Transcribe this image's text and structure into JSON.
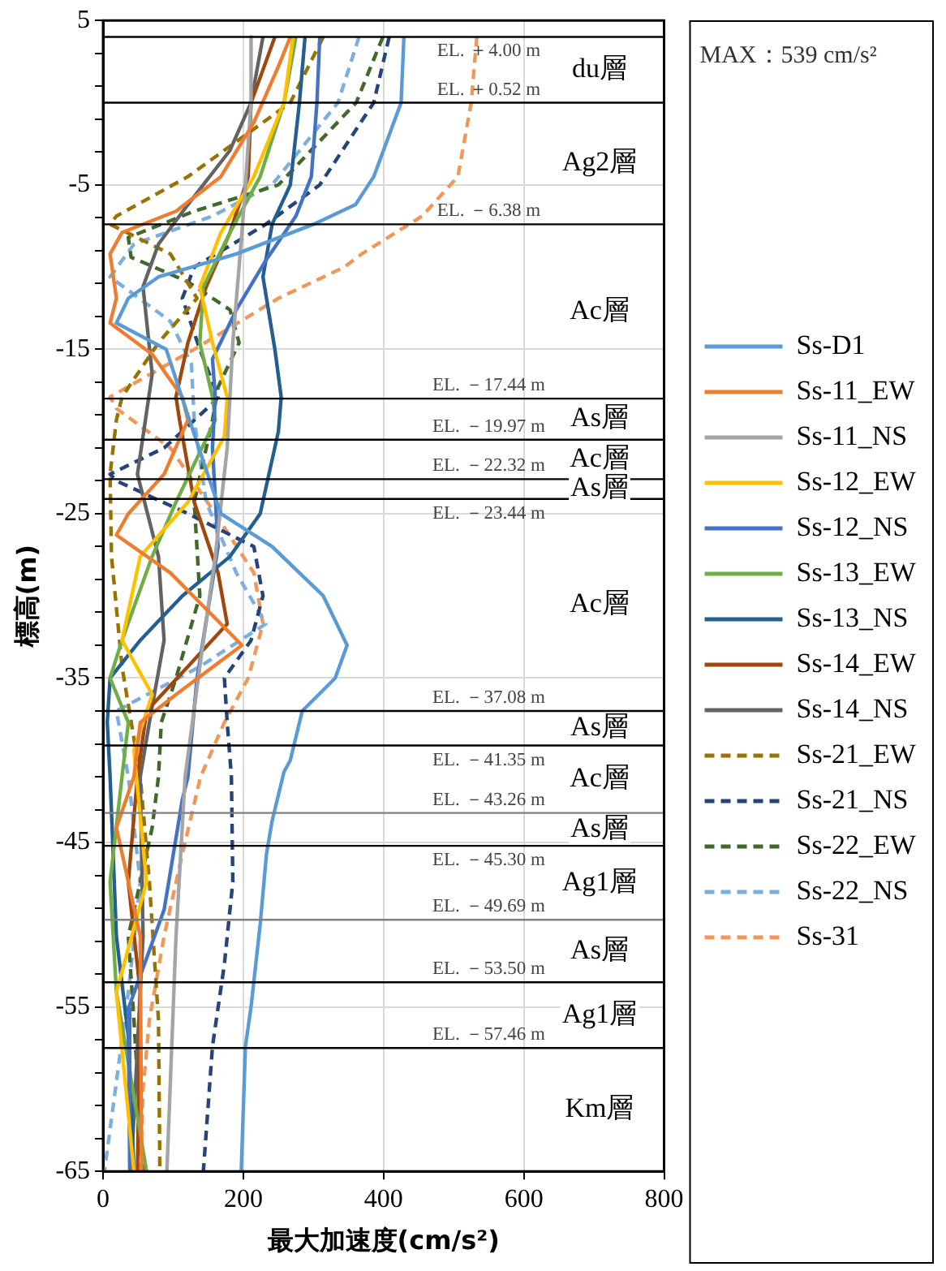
{
  "chart_data": {
    "type": "line",
    "xlabel": "最大加速度(cm/s²)",
    "ylabel": "標高(m)",
    "xlim": [
      0,
      800
    ],
    "xticks": [
      0,
      200,
      400,
      600,
      800
    ],
    "ylim": [
      -65,
      5
    ],
    "yticks": [
      5,
      {
        "value": 3,
        "label": null
      },
      {
        "value": 1,
        "label": null
      },
      {
        "value": -1,
        "label": null
      },
      {
        "value": -3,
        "label": null
      },
      -5,
      {
        "value": -7,
        "label": null
      },
      {
        "value": -9,
        "label": null
      },
      {
        "value": -11,
        "label": null
      },
      {
        "value": -13,
        "label": null
      },
      -15,
      {
        "value": -17,
        "label": null
      },
      {
        "value": -19,
        "label": null
      },
      {
        "value": -21,
        "label": null
      },
      {
        "value": -23,
        "label": null
      },
      -25,
      {
        "value": -27,
        "label": null
      },
      {
        "value": -29,
        "label": null
      },
      {
        "value": -31,
        "label": null
      },
      {
        "value": -33,
        "label": null
      },
      -35,
      {
        "value": -37,
        "label": null
      },
      {
        "value": -39,
        "label": null
      },
      {
        "value": -41,
        "label": null
      },
      {
        "value": -43,
        "label": null
      },
      -45,
      {
        "value": -47,
        "label": null
      },
      {
        "value": -49,
        "label": null
      },
      {
        "value": -51,
        "label": null
      },
      {
        "value": -53,
        "label": null
      },
      -55,
      {
        "value": -57,
        "label": null
      },
      {
        "value": -59,
        "label": null
      },
      {
        "value": -61,
        "label": null
      },
      {
        "value": -63,
        "label": null
      },
      -65
    ],
    "grid": true,
    "legend": "right",
    "marker": "none",
    "series": [
      {
        "name": "Ss-D1",
        "color": "#5b9bd5",
        "line_style": "solid",
        "x": [
          429,
          425,
          386,
          360,
          300,
          190,
          79,
          36,
          19,
          90,
          113,
          168,
          241,
          314,
          348,
          331,
          284,
          267,
          258,
          241,
          233,
          224,
          211,
          203,
          197
        ],
        "values": [
          4.0,
          0.0,
          -4.5,
          -6.2,
          -7.4,
          -9.2,
          -10.6,
          -11.9,
          -13.4,
          -15.0,
          -18.0,
          -25.0,
          -27.0,
          -30.0,
          -33.0,
          -35.0,
          -37.0,
          -40.0,
          -40.7,
          -43.7,
          -45.7,
          -50.0,
          -55.0,
          -57.4,
          -65.0
        ]
      },
      {
        "name": "Ss-11_EW",
        "color": "#ed7d31",
        "line_style": "solid",
        "x": [
          267,
          250,
          215,
          168,
          104,
          27,
          10,
          19,
          10,
          70,
          113,
          121,
          87,
          36,
          19,
          96,
          198,
          104,
          53,
          44,
          19,
          53,
          55
        ],
        "values": [
          4.0,
          2.2,
          -1.2,
          -4.5,
          -6.6,
          -7.9,
          -9.2,
          -11.9,
          -13.4,
          -15.3,
          -17.9,
          -19.3,
          -22.6,
          -25.0,
          -26.3,
          -28.6,
          -33.0,
          -36.0,
          -37.7,
          -41.0,
          -44.1,
          -50.7,
          -65.0
        ]
      },
      {
        "name": "Ss-11_NS",
        "color": "#a5a5a5",
        "line_style": "solid",
        "x": [
          211,
          211,
          203,
          198,
          185,
          177,
          160,
          138,
          117,
          104,
          91
        ],
        "values": [
          4.0,
          0.0,
          -5.0,
          -7.9,
          -14.6,
          -21.0,
          -27.6,
          -34.3,
          -41.0,
          -50.7,
          -65.0
        ]
      },
      {
        "name": "Ss-12_EW",
        "color": "#ffc000",
        "line_style": "solid",
        "x": [
          271,
          258,
          215,
          168,
          138,
          156,
          177,
          173,
          121,
          53,
          27,
          70,
          44,
          62,
          19,
          44
        ],
        "values": [
          4.0,
          0.0,
          -4.5,
          -7.9,
          -11.2,
          -14.6,
          -17.9,
          -20.3,
          -24.3,
          -27.6,
          -32.7,
          -36.0,
          -39.4,
          -47.4,
          -54.1,
          -65.0
        ]
      },
      {
        "name": "Ss-12_NS",
        "color": "#4472c4",
        "line_style": "solid",
        "x": [
          309,
          305,
          297,
          275,
          232,
          190,
          156,
          160,
          156,
          164,
          134,
          121,
          113,
          87,
          36,
          38
        ],
        "values": [
          4.0,
          0.0,
          -4.5,
          -6.9,
          -9.6,
          -12.6,
          -15.6,
          -17.9,
          -21.0,
          -27.0,
          -35.0,
          -41.0,
          -42.4,
          -49.1,
          -55.1,
          -65.0
        ]
      },
      {
        "name": "Ss-13_EW",
        "color": "#70ad47",
        "line_style": "solid",
        "x": [
          275,
          258,
          224,
          181,
          143,
          138,
          156,
          160,
          104,
          70,
          27,
          10,
          36,
          27,
          10,
          19,
          62
        ],
        "values": [
          4.0,
          0.0,
          -4.5,
          -7.9,
          -11.2,
          -14.6,
          -17.9,
          -19.3,
          -24.3,
          -27.6,
          -32.7,
          -35.0,
          -37.7,
          -41.0,
          -47.4,
          -54.1,
          -65.0
        ]
      },
      {
        "name": "Ss-13_NS",
        "color": "#255e91",
        "line_style": "solid",
        "x": [
          288,
          280,
          267,
          241,
          228,
          245,
          254,
          250,
          224,
          181,
          113,
          53,
          10,
          6,
          10,
          19,
          36,
          44
        ],
        "values": [
          4.0,
          0.0,
          -5.0,
          -7.4,
          -10.6,
          -15.0,
          -17.9,
          -20.0,
          -25.0,
          -27.6,
          -30.0,
          -32.7,
          -35.0,
          -37.7,
          -41.0,
          -50.7,
          -56.8,
          -65.0
        ]
      },
      {
        "name": "Ss-14_EW",
        "color": "#9e480e",
        "line_style": "solid",
        "x": [
          245,
          211,
          207,
          181,
          147,
          121,
          104,
          109,
          130,
          164,
          177,
          121,
          62,
          49,
          36,
          53,
          49
        ],
        "values": [
          4.0,
          0.0,
          -4.5,
          -7.9,
          -11.2,
          -14.6,
          -17.9,
          -19.3,
          -24.3,
          -28.6,
          -31.7,
          -34.3,
          -37.0,
          -41.0,
          -47.4,
          -54.1,
          -65.0
        ]
      },
      {
        "name": "Ss-14_NS",
        "color": "#636363",
        "line_style": "solid",
        "x": [
          228,
          211,
          181,
          121,
          79,
          57,
          70,
          49,
          79,
          87,
          66,
          53,
          57,
          40
        ],
        "values": [
          4.0,
          0.0,
          -2.9,
          -6.2,
          -8.6,
          -11.2,
          -16.5,
          -22.6,
          -27.6,
          -32.7,
          -37.7,
          -41.0,
          -50.7,
          -65.0
        ]
      },
      {
        "name": "Ss-21_EW",
        "color": "#997300",
        "line_style": "dashed",
        "x": [
          314,
          267,
          121,
          19,
          10,
          96,
          134,
          79,
          27,
          19,
          10,
          12,
          27,
          53,
          66,
          79,
          81
        ],
        "values": [
          4.0,
          0.0,
          -4.5,
          -6.9,
          -7.4,
          -9.2,
          -11.9,
          -14.6,
          -17.9,
          -19.3,
          -22.6,
          -27.6,
          -34.3,
          -41.0,
          -47.4,
          -55.8,
          -65.0
        ]
      },
      {
        "name": "Ss-21_NS",
        "color": "#264478",
        "line_style": "dashed",
        "x": [
          408,
          386,
          309,
          232,
          130,
          113,
          138,
          164,
          156,
          87,
          10,
          19,
          121,
          215,
          228,
          211,
          173,
          177,
          183,
          185,
          173,
          156,
          143
        ],
        "values": [
          4.0,
          0.0,
          -5.0,
          -7.4,
          -10.0,
          -11.9,
          -15.0,
          -17.9,
          -18.3,
          -21.0,
          -22.6,
          -23.0,
          -25.0,
          -27.0,
          -30.0,
          -32.7,
          -35.0,
          -37.7,
          -41.0,
          -47.4,
          -52.4,
          -57.4,
          -65.0
        ]
      },
      {
        "name": "Ss-22_EW",
        "color": "#43682b",
        "line_style": "dashed",
        "x": [
          399,
          361,
          250,
          130,
          36,
          40,
          121,
          181,
          194,
          164,
          156,
          130,
          138,
          104,
          83,
          79,
          70,
          36,
          44,
          57
        ],
        "values": [
          4.0,
          0.0,
          -5.0,
          -6.6,
          -8.2,
          -9.4,
          -10.9,
          -12.6,
          -14.6,
          -17.3,
          -19.3,
          -24.3,
          -30.0,
          -35.0,
          -37.7,
          -41.0,
          -44.1,
          -50.7,
          -55.8,
          -65.0
        ]
      },
      {
        "name": "Ss-22_NS",
        "color": "#7cafdd",
        "line_style": "dashed",
        "x": [
          365,
          335,
          241,
          156,
          44,
          10,
          96,
          126,
          130,
          147,
          190,
          232,
          138,
          19,
          36,
          53,
          36,
          2
        ],
        "values": [
          4.0,
          0.0,
          -5.0,
          -6.9,
          -8.6,
          -10.6,
          -13.3,
          -15.9,
          -19.3,
          -24.3,
          -28.6,
          -31.7,
          -34.3,
          -37.0,
          -41.0,
          -47.4,
          -54.1,
          -65.0
        ]
      },
      {
        "name": "Ss-31",
        "color": "#f1975a",
        "line_style": "dashed",
        "x": [
          533,
          525,
          506,
          455,
          369,
          344,
          250,
          130,
          10,
          19,
          96,
          160,
          215,
          228,
          207,
          173,
          139,
          113,
          87,
          66,
          57,
          53
        ],
        "values": [
          4.0,
          0.0,
          -4.5,
          -6.9,
          -9.2,
          -10.0,
          -11.9,
          -15.0,
          -17.9,
          -18.6,
          -21.0,
          -25.0,
          -28.6,
          -31.7,
          -35.0,
          -37.7,
          -41.0,
          -45.7,
          -50.7,
          -55.8,
          -60.0,
          -65.0
        ]
      }
    ],
    "ref_lines": [
      {
        "axis": "y",
        "value": 4.0,
        "label": "EL. ＋4.00 m",
        "color": "#000000"
      },
      {
        "axis": "y",
        "value": 0.0,
        "label": "EL. ＋0.52 m",
        "color": "#000000"
      },
      {
        "axis": "y",
        "value": -7.4,
        "label": "EL. －6.38 m",
        "color": "#000000"
      },
      {
        "axis": "y",
        "value": -18.0,
        "label": "EL. －17.44 m",
        "color": "#000000"
      },
      {
        "axis": "y",
        "value": -20.5,
        "label": "EL. －19.97 m",
        "color": "#000000"
      },
      {
        "axis": "y",
        "value": -22.9,
        "label": "EL. －22.32 m",
        "color": "#000000"
      },
      {
        "axis": "y",
        "value": -24.1,
        "label": "EL. －23.44 m",
        "color": "#000000"
      },
      {
        "axis": "y",
        "value": -37.0,
        "label": "EL. －37.08 m",
        "color": "#000000"
      },
      {
        "axis": "y",
        "value": -39.1,
        "label": "EL. －41.35 m",
        "color": "#000000"
      },
      {
        "axis": "y",
        "value": -43.2,
        "label": "EL. －43.26 m",
        "color": "#808080"
      },
      {
        "axis": "y",
        "value": -45.2,
        "label": "EL. －45.30 m",
        "color": "#000000"
      },
      {
        "axis": "y",
        "value": -49.7,
        "label": "EL. －49.69 m",
        "color": "#808080"
      },
      {
        "axis": "y",
        "value": -53.5,
        "label": "EL. －53.50 m",
        "color": "#000000"
      },
      {
        "axis": "y",
        "value": -57.5,
        "label": "EL. －57.46 m",
        "color": "#000000"
      }
    ],
    "annotations": [
      "MAX：539 cm/s²",
      "du層",
      "Ag2層",
      "Ac層",
      "As層",
      "Ac層",
      "As層",
      "Ac層",
      "As層",
      "Ac層",
      "As層",
      "Ag1層",
      "As層",
      "Ag1層",
      "Km層"
    ]
  }
}
